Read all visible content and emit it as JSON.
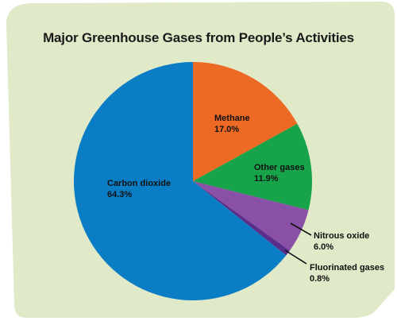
{
  "colors": {
    "card_background": "#e0e9c8",
    "carbon_dioxide": "#0a7dc4",
    "methane": "#ed6a24",
    "other_gases": "#17a34a",
    "nitrous_oxide": "#8a4fa6",
    "fluorinated_gases": "#5a2e8a"
  },
  "chart_data": {
    "type": "pie",
    "title": "Major Greenhouse Gases from People’s Activities",
    "slices": [
      {
        "label": "Methane",
        "value": 17.0,
        "display": "17.0%",
        "color": "#ed6a24"
      },
      {
        "label": "Other gases",
        "value": 11.9,
        "display": "11.9%",
        "color": "#17a34a"
      },
      {
        "label": "Nitrous oxide",
        "value": 6.0,
        "display": "6.0%",
        "color": "#8a4fa6"
      },
      {
        "label": "Fluorinated gases",
        "value": 0.8,
        "display": "0.8%",
        "color": "#5a2e8a"
      },
      {
        "label": "Carbon dioxide",
        "value": 64.3,
        "display": "64.3%",
        "color": "#0a7dc4"
      }
    ]
  }
}
